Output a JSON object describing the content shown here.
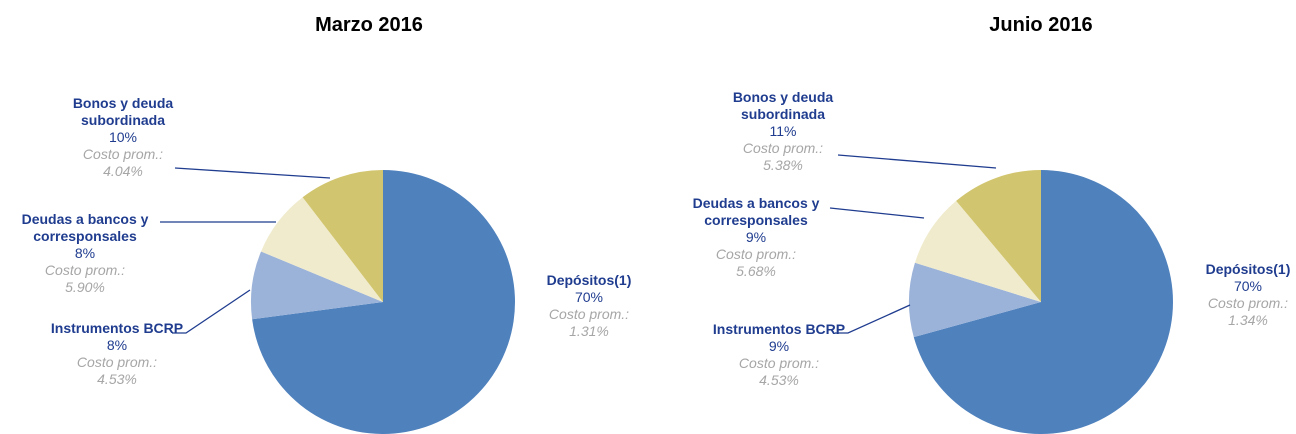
{
  "chart_data": [
    {
      "type": "pie",
      "title": "Marzo 2016",
      "categories": [
        "Depósitos(1)",
        "Instrumentos BCRP",
        "Deudas a bancos y corresponsales",
        "Bonos y deuda subordinada"
      ],
      "values": [
        70,
        8,
        8,
        10
      ],
      "value_labels": [
        "70%",
        "8%",
        "8%",
        "10%"
      ],
      "cost_label": "Costo prom.:",
      "costs": [
        "1.31%",
        "4.53%",
        "5.90%",
        "4.04%"
      ],
      "colors": [
        "#4f81bd",
        "#9bb3d9",
        "#f0ebcd",
        "#d2c56f"
      ]
    },
    {
      "type": "pie",
      "title": "Junio 2016",
      "categories": [
        "Depósitos(1)",
        "Instrumentos BCRP",
        "Deudas a bancos y corresponsales",
        "Bonos y deuda subordinada"
      ],
      "values": [
        70,
        9,
        9,
        11
      ],
      "value_labels": [
        "70%",
        "9%",
        "9%",
        "11%"
      ],
      "cost_label": "Costo prom.:",
      "costs": [
        "1.34%",
        "4.53%",
        "5.68%",
        "5.38%"
      ],
      "colors": [
        "#4f81bd",
        "#9bb3d9",
        "#f0ebcd",
        "#d2c56f"
      ]
    }
  ]
}
